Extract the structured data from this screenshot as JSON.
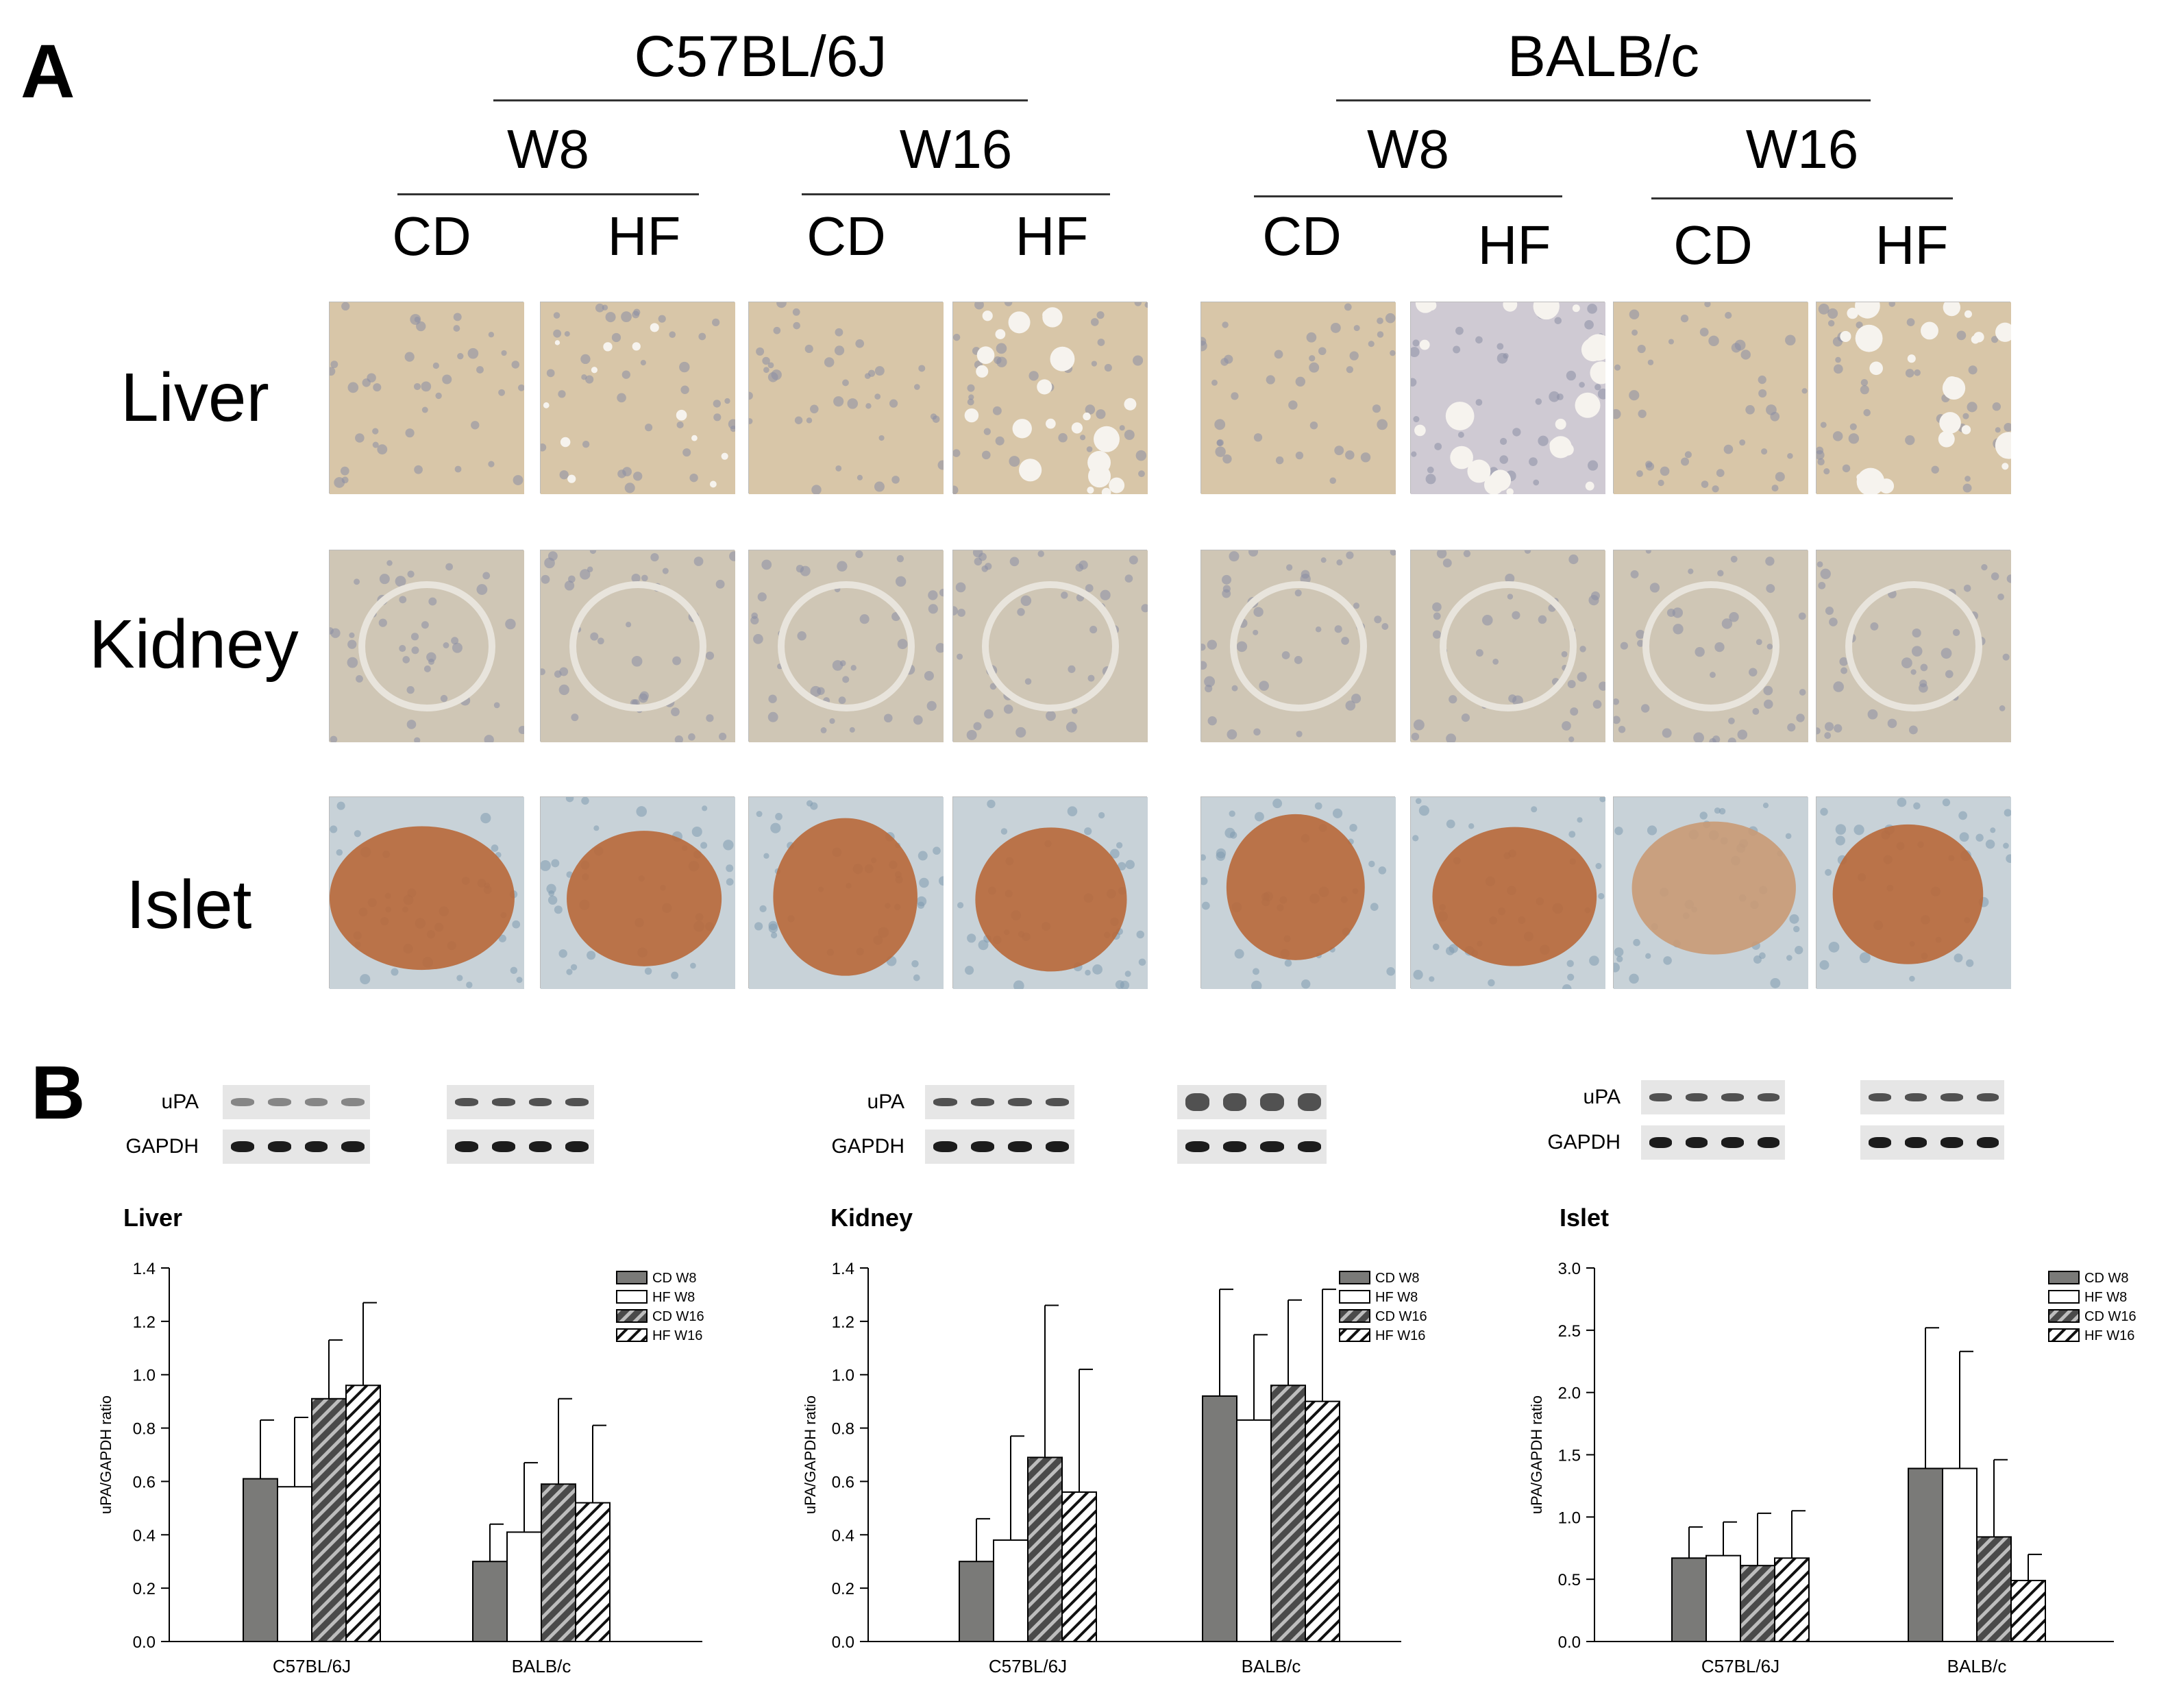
{
  "panel_a": {
    "letter": "A",
    "strains": [
      "C57BL/6J",
      "BALB/c"
    ],
    "weeks": [
      "W8",
      "W16"
    ],
    "diets": [
      "CD",
      "HF"
    ],
    "tissues": [
      "Liver",
      "Kidney",
      "Islet"
    ]
  },
  "panel_b": {
    "letter": "B",
    "blot_labels": {
      "upa": "uPA",
      "gapdh": "GAPDH"
    }
  },
  "colors": {
    "cd_w8": "#7a7a78",
    "hf_w8": "#ffffff",
    "cd_w16": "#4a4a4a",
    "liver_bg": "#d8c6a8",
    "kidney_bg": "#cfc6b5",
    "islet_bg": "#c8d2d8",
    "islet_stain": "#b8683a"
  },
  "chart_data": [
    {
      "type": "bar",
      "title": "Liver",
      "ylabel": "uPA/GAPDH ratio",
      "xlabel": "",
      "categories": [
        "C57BL/6J",
        "BALB/c"
      ],
      "ylim": [
        0,
        1.4
      ],
      "yticks": [
        "0.0",
        "0.2",
        "0.4",
        "0.6",
        "0.8",
        "1.0",
        "1.2",
        "1.4"
      ],
      "series": [
        {
          "name": "CD W8",
          "values": [
            0.61,
            0.3
          ],
          "errors": [
            0.22,
            0.14
          ]
        },
        {
          "name": "HF W8",
          "values": [
            0.58,
            0.41
          ],
          "errors": [
            0.26,
            0.26
          ]
        },
        {
          "name": "CD W16",
          "values": [
            0.91,
            0.59
          ],
          "errors": [
            0.22,
            0.32
          ]
        },
        {
          "name": "HF W16",
          "values": [
            0.96,
            0.52
          ],
          "errors": [
            0.31,
            0.29
          ]
        }
      ],
      "legend": "top-right"
    },
    {
      "type": "bar",
      "title": "Kidney",
      "ylabel": "uPA/GAPDH ratio",
      "xlabel": "",
      "categories": [
        "C57BL/6J",
        "BALB/c"
      ],
      "ylim": [
        0,
        1.4
      ],
      "yticks": [
        "0.0",
        "0.2",
        "0.4",
        "0.6",
        "0.8",
        "1.0",
        "1.2",
        "1.4"
      ],
      "series": [
        {
          "name": "CD W8",
          "values": [
            0.3,
            0.92
          ],
          "errors": [
            0.16,
            0.4
          ]
        },
        {
          "name": "HF W8",
          "values": [
            0.38,
            0.83
          ],
          "errors": [
            0.39,
            0.32
          ]
        },
        {
          "name": "CD W16",
          "values": [
            0.69,
            0.96
          ],
          "errors": [
            0.57,
            0.32
          ]
        },
        {
          "name": "HF W16",
          "values": [
            0.56,
            0.9
          ],
          "errors": [
            0.46,
            0.42
          ]
        }
      ],
      "legend": "top-right"
    },
    {
      "type": "bar",
      "title": "Islet",
      "ylabel": "uPA/GAPDH ratio",
      "xlabel": "",
      "categories": [
        "C57BL/6J",
        "BALB/c"
      ],
      "ylim": [
        0,
        3.0
      ],
      "yticks": [
        "0.0",
        "0.5",
        "1.0",
        "1.5",
        "2.0",
        "2.5",
        "3.0"
      ],
      "series": [
        {
          "name": "CD W8",
          "values": [
            0.67,
            1.39
          ],
          "errors": [
            0.25,
            1.13
          ]
        },
        {
          "name": "HF W8",
          "values": [
            0.69,
            1.39
          ],
          "errors": [
            0.27,
            0.94
          ]
        },
        {
          "name": "CD W16",
          "values": [
            0.61,
            0.84
          ],
          "errors": [
            0.42,
            0.62
          ]
        },
        {
          "name": "HF W16",
          "values": [
            0.67,
            0.49
          ],
          "errors": [
            0.38,
            0.21
          ]
        }
      ],
      "legend": "top-right"
    }
  ]
}
